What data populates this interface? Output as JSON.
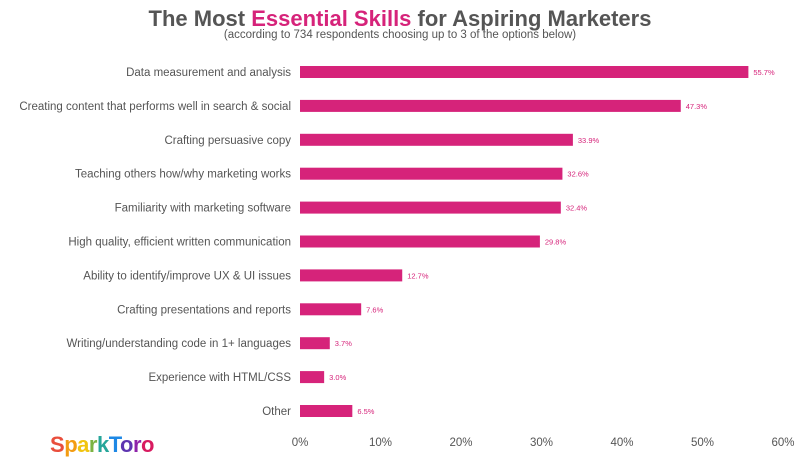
{
  "title": {
    "prefix": "The Most ",
    "highlight": "Essential Skills",
    "suffix": " for Aspiring Marketers"
  },
  "subtitle": "(according to 734 respondents choosing up to 3 of the options below)",
  "logo": "SparkToro",
  "colors": {
    "bar": "#d6237a",
    "text": "#555555",
    "highlight": "#d6237a"
  },
  "chart_data": {
    "type": "bar",
    "orientation": "horizontal",
    "categories": [
      "Data measurement and analysis",
      "Creating content that performs well in search & social",
      "Crafting persuasive copy",
      "Teaching others how/why marketing works",
      "Familiarity with marketing software",
      "High quality, efficient written communication",
      "Ability to identify/improve UX & UI issues",
      "Crafting presentations and reports",
      "Writing/understanding code in 1+ languages",
      "Experience with HTML/CSS",
      "Other"
    ],
    "values": [
      55.7,
      47.3,
      33.9,
      32.6,
      32.4,
      29.8,
      12.7,
      7.6,
      3.7,
      3.0,
      6.5
    ],
    "value_labels": [
      "55.7%",
      "47.3%",
      "33.9%",
      "32.6%",
      "32.4%",
      "29.8%",
      "12.7%",
      "7.6%",
      "3.7%",
      "3.0%",
      "6.5%"
    ],
    "xlim": [
      0,
      60
    ],
    "xticks": [
      0,
      10,
      20,
      30,
      40,
      50,
      60
    ],
    "xtick_labels": [
      "0%",
      "10%",
      "20%",
      "30%",
      "40%",
      "50%",
      "60%"
    ],
    "grid": false
  }
}
